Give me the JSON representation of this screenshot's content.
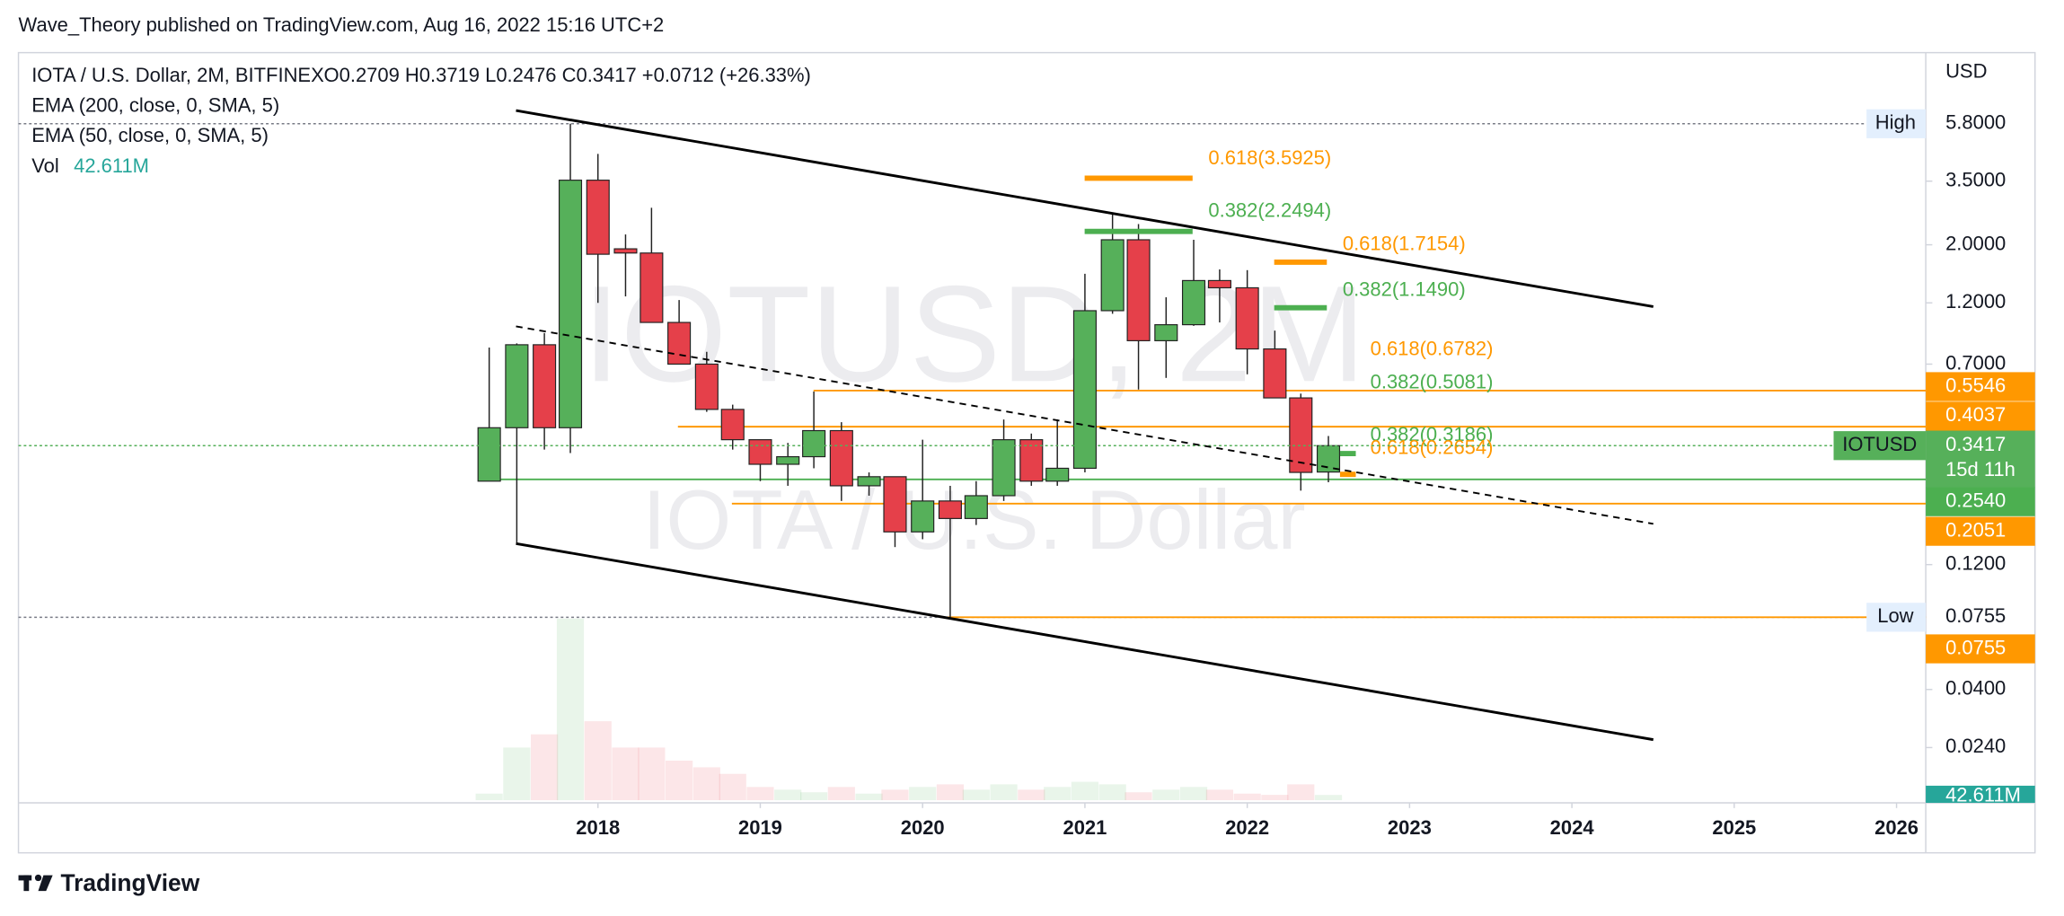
{
  "chart_data": {
    "type": "candlestick",
    "header": "Wave_Theory published on TradingView.com, Aug 16, 2022 15:16 UTC+2",
    "title": "IOTA / U.S. Dollar, 2M, BITFINEX",
    "ohlc_label": "O0.2709  H0.3719  L0.2476  C0.3417  +0.0712 (+26.33%)",
    "indicators": [
      "EMA (200, close, 0, SMA, 5)",
      "EMA (50, close, 0, SMA, 5)"
    ],
    "watermark": [
      "IOTUSD, 2M",
      "IOTA / U.S. Dollar"
    ],
    "axis_unit": "USD",
    "brand": "TradingView",
    "up_color": "#56b05a",
    "down_color": "#e5404a",
    "log_scale": true,
    "x": [
      2017.33,
      2017.5,
      2017.67,
      2017.83,
      2018,
      2018.17,
      2018.33,
      2018.5,
      2018.67,
      2018.83,
      2019,
      2019.17,
      2019.33,
      2019.5,
      2019.67,
      2019.83,
      2020,
      2020.17,
      2020.33,
      2020.5,
      2020.67,
      2020.83,
      2021,
      2021.17,
      2021.33,
      2021.5,
      2021.67,
      2021.83,
      2022,
      2022.17,
      2022.33,
      2022.5
    ],
    "open": [
      0.25,
      0.4,
      0.83,
      0.4,
      3.53,
      1.93,
      1.86,
      1.01,
      0.7,
      0.47,
      0.36,
      0.29,
      0.31,
      0.39,
      0.24,
      0.26,
      0.16,
      0.21,
      0.18,
      0.22,
      0.36,
      0.25,
      0.28,
      1.12,
      2.09,
      0.86,
      0.99,
      1.46,
      1.37,
      0.8,
      0.52,
      0.2709
    ],
    "high": [
      0.81,
      0.84,
      0.92,
      5.8,
      4.45,
      2.19,
      2.77,
      1.23,
      0.78,
      0.49,
      0.36,
      0.35,
      0.55,
      0.42,
      0.27,
      0.26,
      0.36,
      0.24,
      0.25,
      0.43,
      0.38,
      0.43,
      1.55,
      2.61,
      2.4,
      1.26,
      2.09,
      1.61,
      1.6,
      0.94,
      0.54,
      0.3719
    ],
    "low": [
      0.25,
      0.144,
      0.33,
      0.32,
      1.2,
      1.27,
      1.01,
      0.7,
      0.46,
      0.33,
      0.25,
      0.24,
      0.28,
      0.21,
      0.22,
      0.14,
      0.15,
      0.0755,
      0.17,
      0.21,
      0.24,
      0.24,
      0.27,
      1.09,
      0.56,
      0.62,
      0.98,
      1.01,
      0.64,
      0.52,
      0.23,
      0.2476
    ],
    "close": [
      0.4,
      0.83,
      0.4,
      3.53,
      1.84,
      1.86,
      1.01,
      0.7,
      0.47,
      0.36,
      0.29,
      0.31,
      0.39,
      0.24,
      0.26,
      0.16,
      0.21,
      0.18,
      0.22,
      0.36,
      0.25,
      0.28,
      1.12,
      2.09,
      0.86,
      0.99,
      1.46,
      1.37,
      0.8,
      0.52,
      0.27,
      0.3417
    ],
    "volume": {
      "name": "Vol",
      "values": [
        53,
        426,
        533,
        1470,
        639,
        426,
        426,
        320,
        266,
        213,
        107,
        85,
        64,
        107,
        53,
        85,
        107,
        128,
        85,
        128,
        85,
        107,
        149,
        128,
        64,
        85,
        107,
        85,
        53,
        43,
        128,
        42.611
      ],
      "last_label": "42.611M",
      "ylim": [
        0,
        1470
      ],
      "color": "#26a69a"
    },
    "xlim": [
      2014.43,
      2026.18
    ],
    "xticks": [
      2018,
      2019,
      2020,
      2021,
      2022,
      2023,
      2024,
      2025,
      2026
    ],
    "ylim": [
      0.01476,
      10.84
    ],
    "yticks": [
      {
        "value": 3.5,
        "label": "3.5000"
      },
      {
        "value": 2,
        "label": "2.0000"
      },
      {
        "value": 1.2,
        "label": "1.2000"
      },
      {
        "value": 0.7,
        "label": "0.7000"
      },
      {
        "value": 0.12,
        "label": "0.1200"
      },
      {
        "value": 0.04,
        "label": "0.0400"
      },
      {
        "value": 0.024,
        "label": "0.0240"
      }
    ],
    "high_marker": {
      "label": "High",
      "value": 5.8,
      "value_label": "5.8000"
    },
    "low_marker": {
      "label": "Low",
      "value": 0.0755,
      "value_label": "0.0755"
    },
    "last": {
      "label": "IOTUSD",
      "value": 0.3417,
      "value_label": "0.3417",
      "countdown": "15d 11h",
      "color": "#56b05a"
    },
    "levels": [
      {
        "value": 0.5546,
        "label": "0.5546",
        "color": "#ff9800"
      },
      {
        "value": 0.4037,
        "label": "0.4037",
        "color": "#ff9800"
      },
      {
        "value": 0.254,
        "label": "0.2540",
        "color": "#4caf50"
      },
      {
        "value": 0.2051,
        "label": "0.2051",
        "color": "#ff9800"
      },
      {
        "value": 0.0755,
        "label": "0.0755",
        "color": "#ff9800"
      }
    ],
    "fibs": [
      {
        "label": "0.618(3.5925)",
        "value": 3.5925,
        "color": "#ff9800"
      },
      {
        "label": "0.382(2.2494)",
        "value": 2.2494,
        "color": "#4caf50"
      },
      {
        "label": "0.618(1.7154)",
        "value": 1.7154,
        "color": "#ff9800"
      },
      {
        "label": "0.382(1.1490)",
        "value": 1.149,
        "color": "#4caf50"
      },
      {
        "label": "0.618(0.6782)",
        "value": 0.6782,
        "color": "#ff9800"
      },
      {
        "label": "0.382(0.5081)",
        "value": 0.5081,
        "color": "#4caf50"
      },
      {
        "label": "0.382(0.3186)",
        "value": 0.3186,
        "color": "#4caf50"
      },
      {
        "label": "0.618(0.2654)",
        "value": 0.2654,
        "color": "#ff9800"
      }
    ]
  }
}
